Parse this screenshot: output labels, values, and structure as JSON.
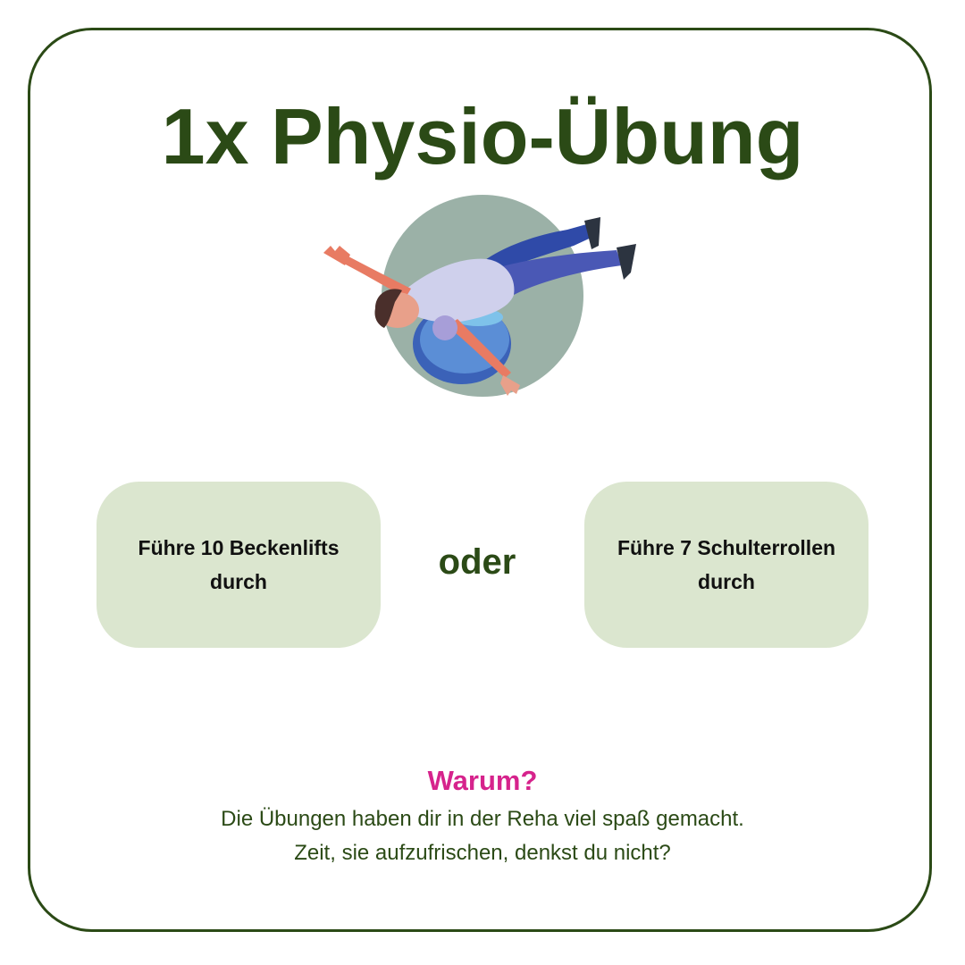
{
  "card": {
    "title": "1x Physio-Übung",
    "illustration_icon": "person-on-exercise-ball-icon",
    "options": [
      {
        "label": "Führe 10 Beckenlifts durch"
      },
      {
        "label": "Führe 7 Schulterrollen durch"
      }
    ],
    "separator": "oder",
    "why_heading": "Warum?",
    "reason_lines": [
      "Die Übungen haben dir in der Reha viel spaß gemacht.",
      "Zeit, sie aufzufrischen, denkst du nicht?"
    ]
  },
  "colors": {
    "frame": "#2b4a16",
    "title": "#2b4a16",
    "option_bg": "#dbe6cf",
    "accent": "#d6238c",
    "circle": "#9bb1a7"
  }
}
